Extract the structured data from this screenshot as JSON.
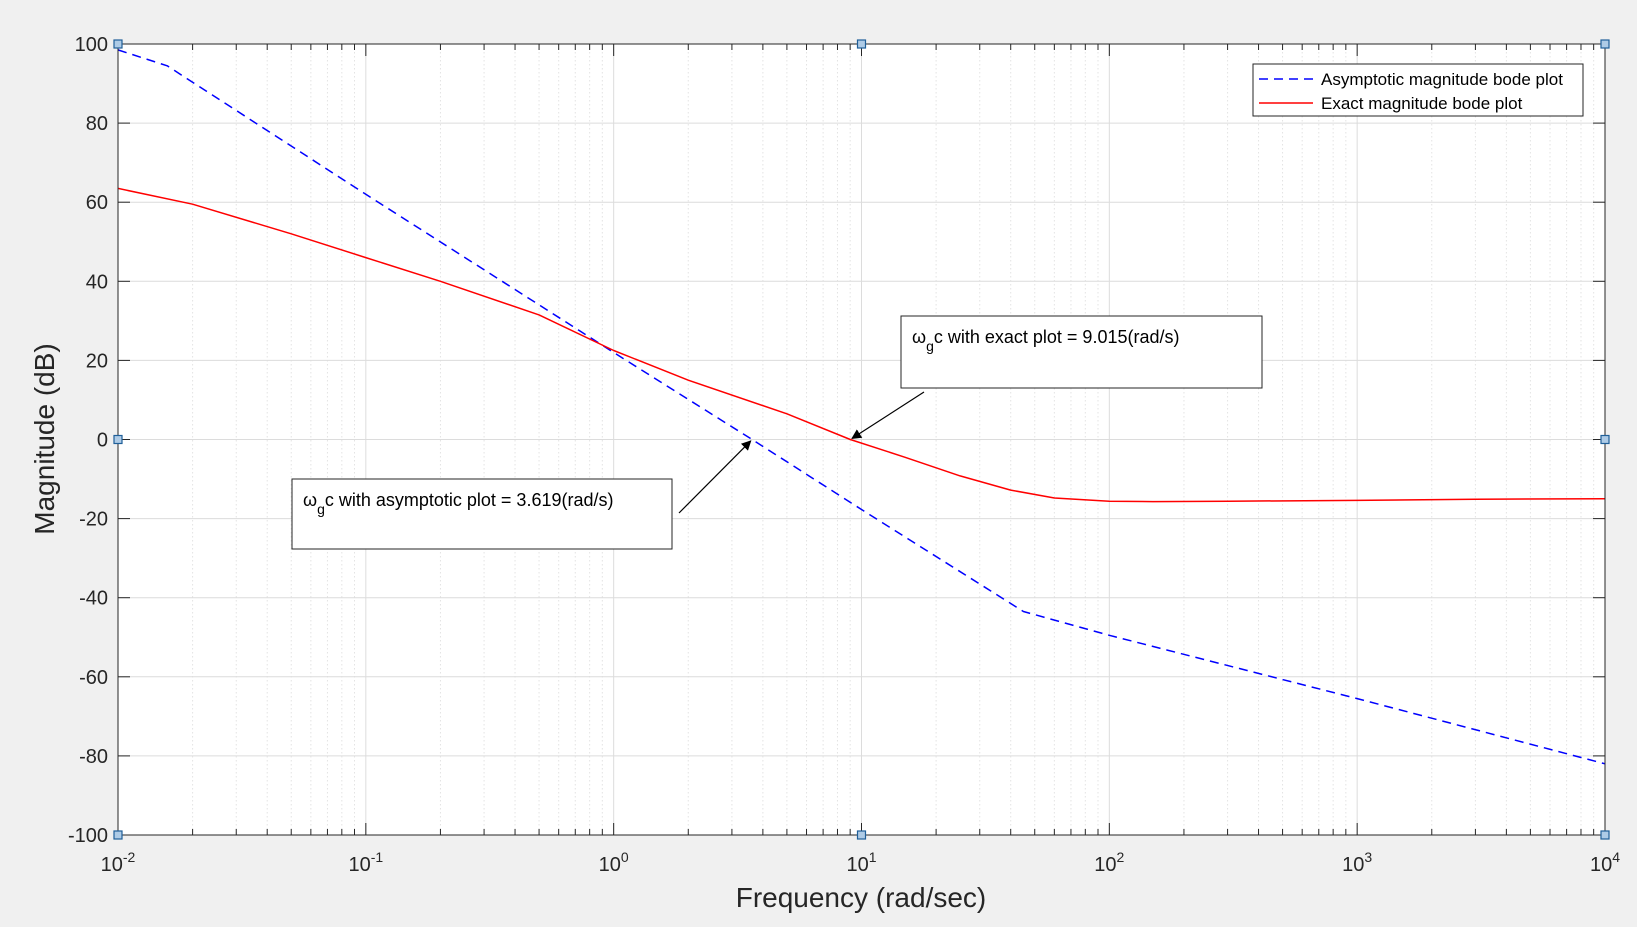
{
  "chart_data": {
    "type": "line",
    "xscale": "log",
    "xlim": [
      0.01,
      10000
    ],
    "ylim": [
      -100,
      100
    ],
    "xlabel": "Frequency (rad/sec)",
    "ylabel": "Magnitude (dB)",
    "x_ticks": [
      {
        "value": 0.01,
        "base": "10",
        "exp": "-2"
      },
      {
        "value": 0.1,
        "base": "10",
        "exp": "-1"
      },
      {
        "value": 1,
        "base": "10",
        "exp": "0"
      },
      {
        "value": 10,
        "base": "10",
        "exp": "1"
      },
      {
        "value": 100,
        "base": "10",
        "exp": "2"
      },
      {
        "value": 1000,
        "base": "10",
        "exp": "3"
      },
      {
        "value": 10000,
        "base": "10",
        "exp": "4"
      }
    ],
    "y_ticks": [
      "100",
      "80",
      "60",
      "40",
      "20",
      "0",
      "-20",
      "-40",
      "-60",
      "-80",
      "-100"
    ],
    "y_tick_values": [
      100,
      80,
      60,
      40,
      20,
      0,
      -20,
      -40,
      -60,
      -80,
      -100
    ],
    "grid": true,
    "minor_grid": true,
    "legend_position": "top-right",
    "series": [
      {
        "name": "Asymptotic magnitude bode plot",
        "color": "#0000ff",
        "style": "dashed",
        "x": [
          0.01,
          0.0158,
          0.1,
          1,
          3.619,
          10,
          45,
          100,
          1000,
          10000
        ],
        "y": [
          98.5,
          94.5,
          62,
          22,
          0,
          -17.7,
          -43.5,
          -49.5,
          -65.5,
          -82
        ]
      },
      {
        "name": "Exact magnitude bode plot",
        "color": "#ff0000",
        "style": "solid",
        "x": [
          0.01,
          0.02,
          0.05,
          0.1,
          0.2,
          0.5,
          1,
          2,
          5,
          9.015,
          15,
          25,
          40,
          60,
          100,
          150,
          300,
          1000,
          3000,
          10000
        ],
        "y": [
          63.5,
          59.5,
          52,
          46,
          40,
          31.5,
          22.5,
          15,
          6.5,
          0,
          -4.5,
          -9.2,
          -12.8,
          -14.8,
          -15.6,
          -15.7,
          -15.6,
          -15.4,
          -15.1,
          -15
        ]
      }
    ],
    "annotations": [
      {
        "label_pre": "ω",
        "label_sub": "g",
        "label_post": "c with exact plot = 9.015(rad/s)",
        "point": {
          "x": 9.015,
          "y": 0
        }
      },
      {
        "label_pre": "ω",
        "label_sub": "g",
        "label_post": "c with asymptotic plot = 3.619(rad/s)",
        "point": {
          "x": 3.619,
          "y": 0
        }
      }
    ]
  }
}
